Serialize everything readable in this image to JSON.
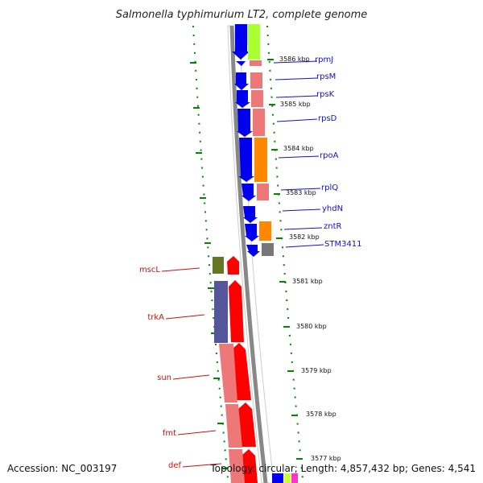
{
  "title": "Salmonella typhimurium LT2, complete genome",
  "footer": {
    "accession": "Accession: NC_003197",
    "topology": "Topology: circular; Length: 4,857,432 bp; Genes: 4,541"
  },
  "scale_labels": [
    "3586 kbp",
    "3585 kbp",
    "3584 kbp",
    "3583 kbp",
    "3582 kbp",
    "3581 kbp",
    "3580 kbp",
    "3579 kbp",
    "3578 kbp",
    "3577 kbp"
  ],
  "genes_right": [
    "rpmJ",
    "rpsM",
    "rpsK",
    "rpsD",
    "rpoA",
    "rplQ",
    "yhdN",
    "zntR",
    "STM3411"
  ],
  "genes_left": [
    "mscL",
    "trkA",
    "sun",
    "fmt",
    "def"
  ],
  "colors": {
    "forward_strand": "#ff0000",
    "reverse_strand": "#0000ee",
    "right_label": "#1010cc",
    "left_label": "#cc1010",
    "tick_dots": "#008800",
    "backbone": "#888888"
  }
}
